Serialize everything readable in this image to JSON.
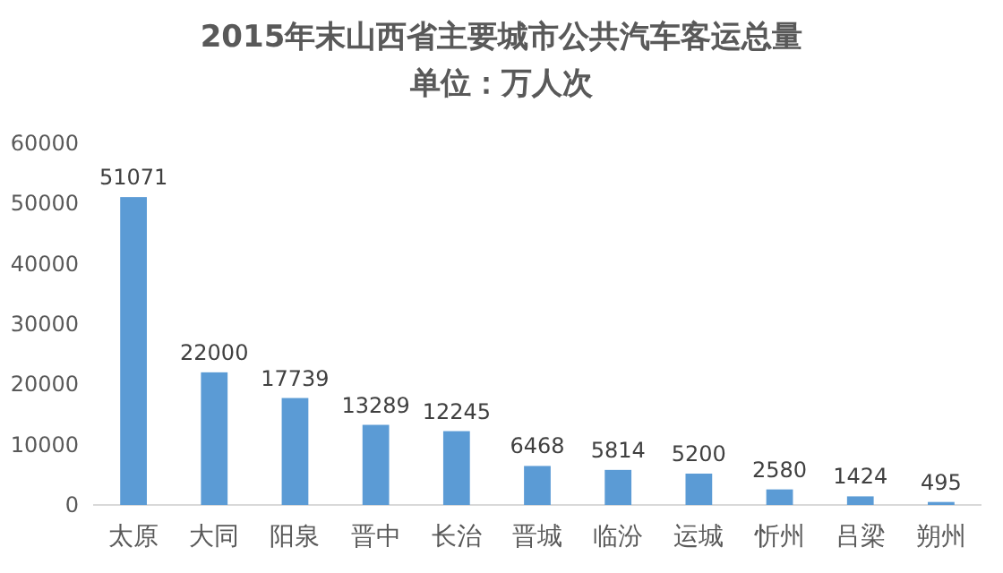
{
  "chart_data": {
    "type": "bar",
    "title": "2015年末山西省主要城市公共汽车客运总量",
    "subtitle": "单位：万人次",
    "categories": [
      "太原",
      "大同",
      "阳泉",
      "晋中",
      "长治",
      "晋城",
      "临汾",
      "运城",
      "忻州",
      "吕梁",
      "朔州"
    ],
    "values": [
      51071,
      22000,
      17739,
      13289,
      12245,
      6468,
      5814,
      5200,
      2580,
      1424,
      495
    ],
    "color": "#5b9bd5",
    "ylim": [
      0,
      60000
    ],
    "yticks": [
      0,
      10000,
      20000,
      30000,
      40000,
      50000,
      60000
    ],
    "data_labels": true
  }
}
